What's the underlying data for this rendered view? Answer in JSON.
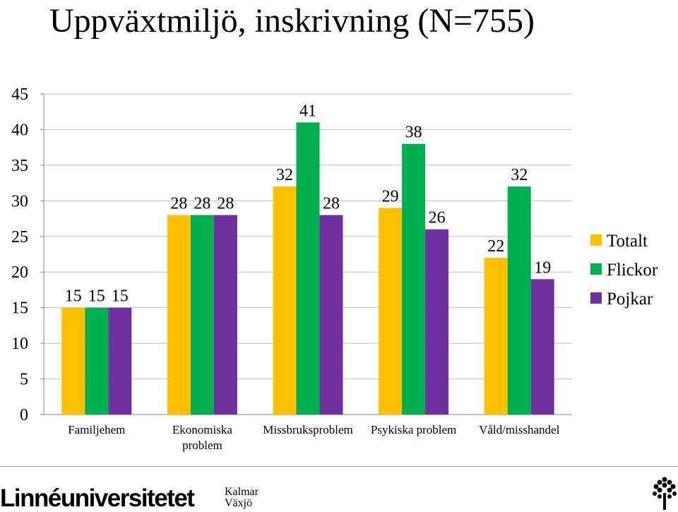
{
  "header": {
    "title": "Uppväxtmiljö, inskrivning (N=755)"
  },
  "chart_data": {
    "type": "bar",
    "categories": [
      "Familjehem",
      "Ekonomiska problem",
      "Missbruksproblem",
      "Psykiska problem",
      "Våld/misshandel"
    ],
    "category_lines": [
      [
        "Familjehem"
      ],
      [
        "Ekonomiska",
        "problem"
      ],
      [
        "Missbruksproblem"
      ],
      [
        "Psykiska problem"
      ],
      [
        "Våld/misshandel"
      ]
    ],
    "series": [
      {
        "name": "Totalt",
        "color": "#FFC000",
        "values": [
          15,
          28,
          32,
          29,
          22
        ]
      },
      {
        "name": "Flickor",
        "color": "#00B050",
        "values": [
          15,
          28,
          41,
          38,
          32
        ]
      },
      {
        "name": "Pojkar",
        "color": "#7030A0",
        "values": [
          15,
          28,
          28,
          26,
          19
        ]
      }
    ],
    "ylim": [
      0,
      45
    ],
    "yticks": [
      0,
      5,
      10,
      15,
      20,
      25,
      30,
      35,
      40,
      45
    ],
    "grid": true,
    "legend_position": "right",
    "data_labels": true
  },
  "footer": {
    "logo_text": "Linnéuniversitetet",
    "logo_places": [
      "Kalmar",
      "Växjö"
    ],
    "tree_icon": "tree-logo-icon"
  }
}
